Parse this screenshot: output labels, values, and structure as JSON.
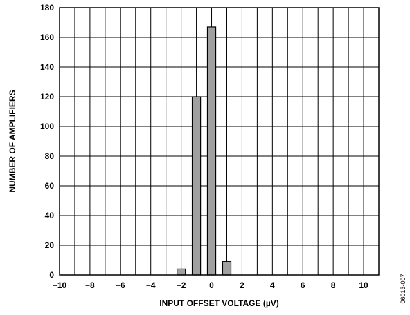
{
  "chart_data": {
    "type": "bar",
    "title": "",
    "xlabel": "INPUT OFFSET VOLTAGE (µV)",
    "ylabel": "NUMBER OF AMPLIFIERS",
    "xlim": [
      -10,
      11
    ],
    "ylim": [
      0,
      180
    ],
    "x_ticks": [
      -10,
      -8,
      -6,
      -4,
      -2,
      0,
      2,
      4,
      6,
      8,
      10
    ],
    "x_tick_labels": [
      "−10",
      "−8",
      "−6",
      "−4",
      "−2",
      "0",
      "2",
      "4",
      "6",
      "8",
      "10"
    ],
    "y_ticks": [
      0,
      20,
      40,
      60,
      80,
      100,
      120,
      140,
      160,
      180
    ],
    "y_tick_labels": [
      "0",
      "20",
      "40",
      "60",
      "80",
      "100",
      "120",
      "140",
      "160",
      "180"
    ],
    "bars": [
      {
        "x": -2,
        "value": 4
      },
      {
        "x": -1,
        "value": 120
      },
      {
        "x": 0,
        "value": 167
      },
      {
        "x": 1,
        "value": 9
      }
    ],
    "grid": true,
    "bar_color": "#a0a0a0",
    "legend": "none"
  },
  "figure_code": "06013-007"
}
